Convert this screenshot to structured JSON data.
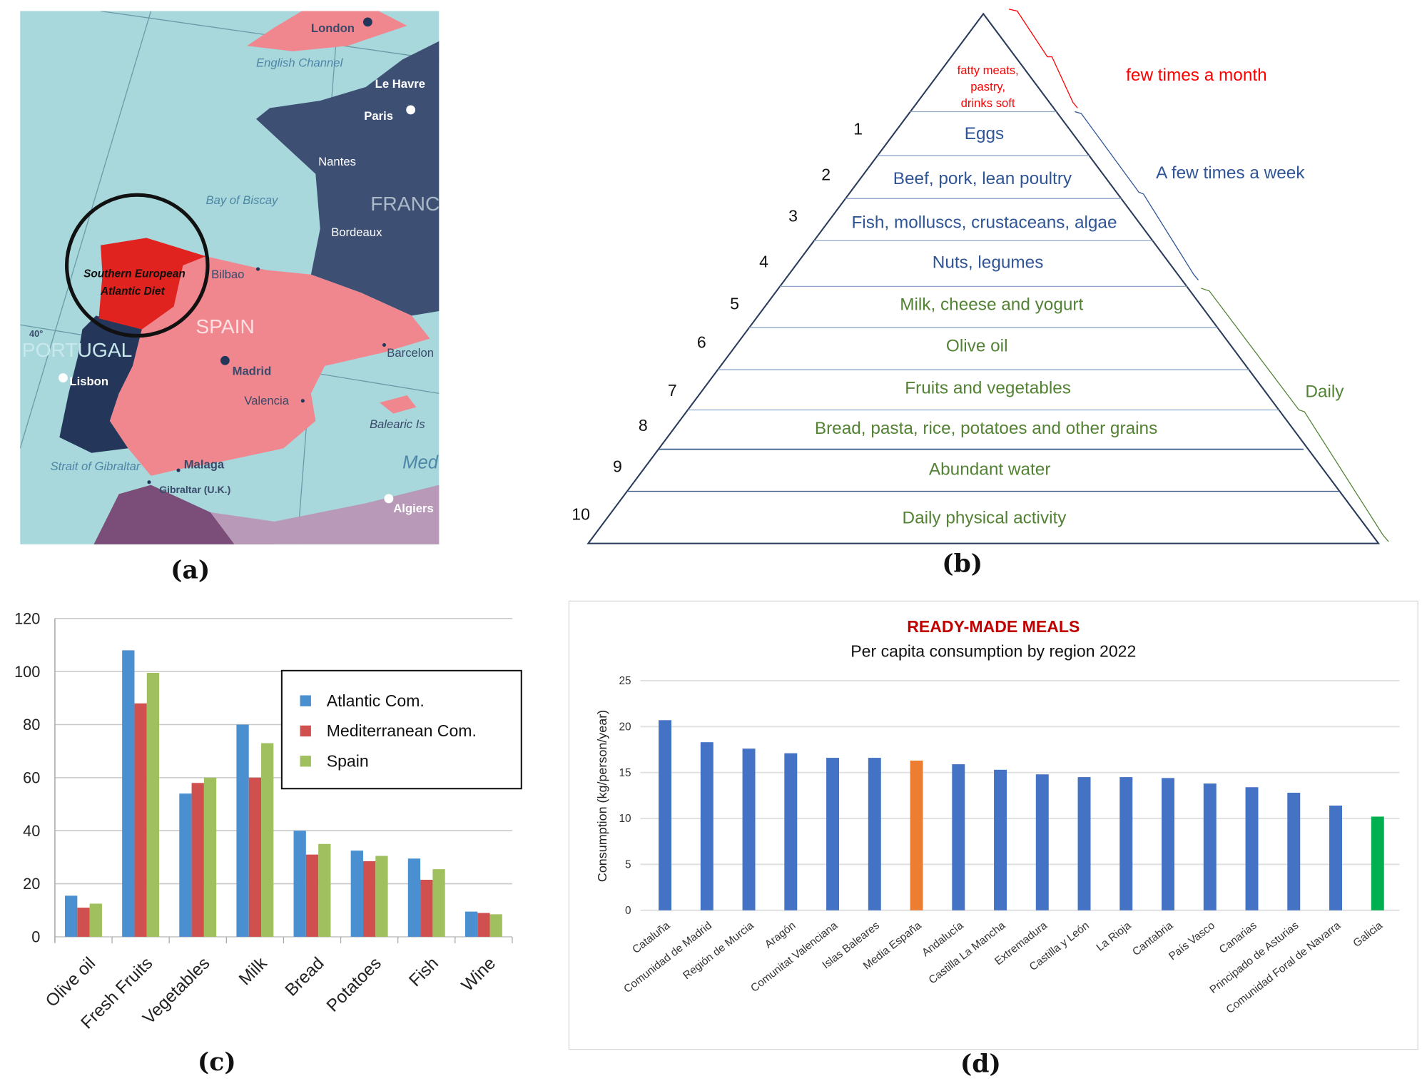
{
  "panels": {
    "a": "(a)",
    "b": "(b)",
    "c": "(c)",
    "d": "(d)"
  },
  "map": {
    "highlight_label_line1": "Southern European",
    "highlight_label_line2": "Atlantic Diet",
    "places": {
      "london": "London",
      "english_channel": "English Channel",
      "le_havre": "Le Havre",
      "paris": "Paris",
      "nantes": "Nantes",
      "bay_of_biscay": "Bay  of  Biscay",
      "france": "FRANC",
      "bordeaux": "Bordeaux",
      "bilbao": "Bilbao",
      "spain": "SPAIN",
      "portugal": "PORTUGAL",
      "lat": "40°",
      "lisbon": "Lisbon",
      "madrid": "Madrid",
      "barcelona": "Barcelon",
      "valencia": "Valencia",
      "balearic": "Balearic Is",
      "strait": "Strait of  Gibraltar",
      "malaga": "Malaga",
      "gibraltar": "Gibraltar (U.K.)",
      "med": "Med",
      "algiers": "Algiers"
    },
    "colors": {
      "sea": "#a8d8dc",
      "spain": "#f0868e",
      "highlight": "#e0231e",
      "france": "#3d4f73",
      "portugal": "#24375a"
    }
  },
  "pyramid": {
    "top_lines": [
      "fatty meats,",
      "pastry,",
      "drinks soft"
    ],
    "levels": [
      {
        "num": "1",
        "label": "Eggs"
      },
      {
        "num": "2",
        "label": "Beef, pork, lean poultry"
      },
      {
        "num": "3",
        "label": "Fish, molluscs, crustaceans, algae"
      },
      {
        "num": "4",
        "label": "Nuts, legumes"
      },
      {
        "num": "5",
        "label": "Milk, cheese and yogurt"
      },
      {
        "num": "6",
        "label": "Olive oil"
      },
      {
        "num": "7",
        "label": "Fruits and vegetables"
      },
      {
        "num": "8",
        "label": "Bread, pasta, rice, potatoes and other grains"
      },
      {
        "num": "9",
        "label": "Abundant water"
      },
      {
        "num": "10",
        "label": "Daily physical activity"
      }
    ],
    "frequency": {
      "month": "few times a month",
      "week": "A few times a week",
      "daily": "Daily"
    },
    "colors": {
      "month": "#ff0000",
      "week": "#2f5597",
      "daily": "#548235"
    }
  },
  "chart_data": [
    {
      "type": "bar",
      "categories": [
        "Olive oil",
        "Fresh Fruits",
        "Vegetables",
        "Milk",
        "Bread",
        "Potatoes",
        "Fish",
        "Wine"
      ],
      "series": [
        {
          "name": "Atlantic Com.",
          "color": "#4a90d0",
          "values": [
            15.5,
            108,
            54,
            80,
            40,
            32.5,
            29.5,
            9.5
          ]
        },
        {
          "name": "Mediterranean Com.",
          "color": "#d05050",
          "values": [
            11,
            88,
            58,
            60,
            31,
            28.5,
            21.5,
            9
          ]
        },
        {
          "name": "Spain",
          "color": "#a0c060",
          "values": [
            12.5,
            99.5,
            60,
            73,
            35,
            30.5,
            25.5,
            8.5
          ]
        }
      ],
      "yticks": [
        "0",
        "20",
        "40",
        "60",
        "80",
        "100",
        "120"
      ],
      "ylim": [
        0,
        120
      ],
      "grid": true,
      "legend": "top-right"
    },
    {
      "type": "bar",
      "title": "READY-MADE MEALS",
      "subtitle": "Per capita consumption by region 2022",
      "ylabel": "Consumption (kg/person/year)",
      "ylim": [
        0,
        25
      ],
      "yticks": [
        "0",
        "5",
        "10",
        "15",
        "20",
        "25"
      ],
      "grid": true,
      "categories": [
        "Cataluña",
        "Comunidad de Madrid",
        "Región de Murcia",
        "Aragón",
        "Comunitat Valenciana",
        "Islas Baleares",
        "Media España",
        "Andalucía",
        "Castilla La Mancha",
        "Extremadura",
        "Castilla y León",
        "La Rioja",
        "Cantabria",
        "País Vasco",
        "Canarias",
        "Principado de Asturias",
        "Comunidad Foral de Navarra",
        "Galicia"
      ],
      "values": [
        20.7,
        18.3,
        17.6,
        17.1,
        16.6,
        16.6,
        16.3,
        15.9,
        15.3,
        14.8,
        14.5,
        14.5,
        14.4,
        13.8,
        13.4,
        12.8,
        11.4,
        10.2
      ],
      "colors": {
        "default": "#4472c4",
        "Media España": "#ed7d31",
        "Galicia": "#00b050"
      },
      "title_color": "#c00000"
    }
  ]
}
